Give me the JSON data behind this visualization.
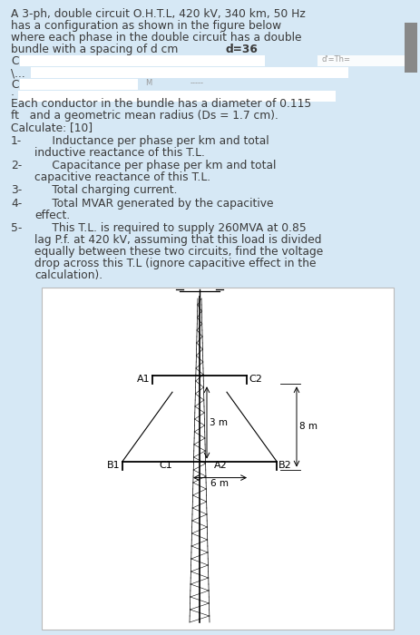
{
  "bg_color": "#d6e8f5",
  "white_box_color": "#ffffff",
  "text_color": "#3a3a3a",
  "title_line1": "A 3-ph, double circuit O.H.T.L, 420 kV, 340 km, 50 Hz",
  "title_line2": "has a configuration as shown in the figure below",
  "title_line3": "where each phase in the double circuit has a double",
  "title_line4": "bundle with a spacing of d cm ",
  "bold_part": "d=36",
  "para1_line1": "Each conductor in the bundle has a diameter of 0.115",
  "para1_line2": "ft   and a geometric mean radius (Ds = 1.7 cm).",
  "para1_line3": "Calculate: [10]",
  "item1_num": "1-",
  "item1_text1": "     Inductance per phase per km and total",
  "item1_text2": "inductive reactance of this T.L.",
  "item2_num": "2-",
  "item2_text1": "     Capacitance per phase per km and total",
  "item2_text2": "capacitive reactance of this T.L.",
  "item3_num": "3-",
  "item3_text1": "     Total charging current.",
  "item4_num": "4-",
  "item4_text1": "     Total MVAR generated by the capacitive",
  "item4_text2": "effect.",
  "item5_num": "5-",
  "item5_text1": "     This T.L. is required to supply 260MVA at 0.85",
  "item5_text2": "lag P.f. at 420 kV, assuming that this load is divided",
  "item5_text3": "equally between these two circuits, find the voltage",
  "item5_text4": "drop across this T.L (ignore capacitive effect in the",
  "item5_text5": "calculation).",
  "font_size_body": 8.8,
  "scrollbar_color": "#888888"
}
